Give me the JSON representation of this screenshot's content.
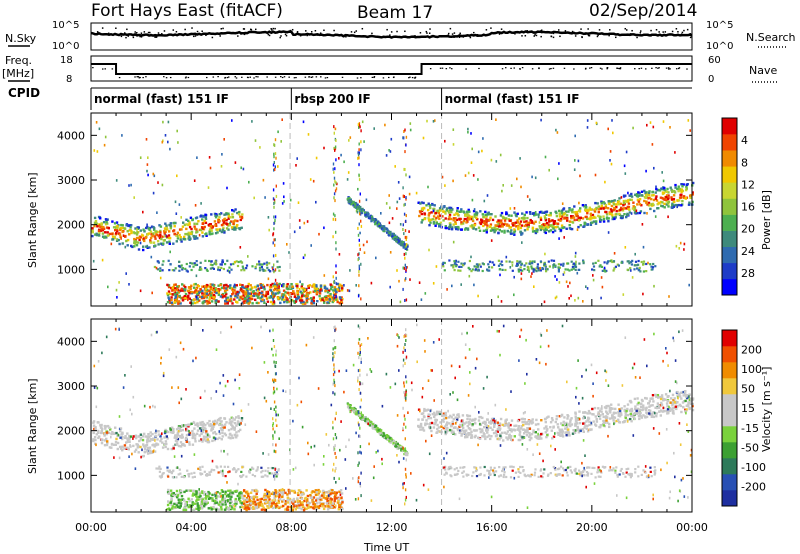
{
  "header": {
    "site": "Fort Hays East (fitACF)",
    "beam": "Beam 17",
    "date": "02/Sep/2014"
  },
  "top_panel": {
    "left_label_1": "N.Sky",
    "left_label_2a": "Freq.",
    "left_label_2b": "[MHz]",
    "left_label_3": "CPID",
    "right_label_1": "N.Search",
    "right_label_2": "Nave",
    "nsky_ticks": [
      "10^5",
      "10^0"
    ],
    "nsearch_ticks": [
      "10^5",
      "10^0"
    ],
    "freq_ticks": [
      "18",
      "8"
    ],
    "nave_ticks": [
      "60",
      "0"
    ]
  },
  "cpid_segments": [
    {
      "label": "normal (fast) 151 IF",
      "start_h": 0,
      "end_h": 8
    },
    {
      "label": "rbsp 200 IF",
      "start_h": 8,
      "end_h": 14
    },
    {
      "label": "normal (fast) 151 IF",
      "start_h": 14,
      "end_h": 24
    }
  ],
  "chart_data": [
    {
      "type": "heatmap",
      "name": "power",
      "ylabel": "Slant Range [km]",
      "xlabel": "",
      "xlim_hours": [
        0,
        24
      ],
      "ylim_km": [
        180,
        4500
      ],
      "y_ticks": [
        1000,
        2000,
        3000,
        4000
      ],
      "colorbar": {
        "label": "Power [dB]",
        "ticks": [
          "4",
          "8",
          "12",
          "16",
          "20",
          "24",
          "28"
        ],
        "range": [
          0,
          32
        ],
        "colors": [
          "#0000ff",
          "#1e3cc8",
          "#2f6bb0",
          "#3e8a7c",
          "#4caf50",
          "#8fc43c",
          "#c8d632",
          "#f0c800",
          "#f08a00",
          "#f04400",
          "#e00000"
        ]
      }
    },
    {
      "type": "heatmap",
      "name": "velocity",
      "ylabel": "Slant Range [km]",
      "xlabel": "Time UT",
      "xlim_hours": [
        0,
        24
      ],
      "ylim_km": [
        180,
        4500
      ],
      "y_ticks": [
        1000,
        2000,
        3000,
        4000
      ],
      "x_ticks": [
        "00:00",
        "04:00",
        "08:00",
        "12:00",
        "16:00",
        "20:00",
        "00:00"
      ],
      "colorbar": {
        "label": "Velocity [m s⁻¹]",
        "ticks": [
          "200",
          "100",
          "50",
          "15",
          "-15",
          "-50",
          "-100",
          "-200"
        ],
        "range": [
          -250,
          250
        ],
        "colors": [
          "#1e2fa0",
          "#2850b4",
          "#2d7a5a",
          "#3ca032",
          "#7ad23c",
          "#c8c8c8",
          "#c8c8c8",
          "#f0c83c",
          "#f08c00",
          "#f05000",
          "#e00000"
        ]
      }
    }
  ]
}
